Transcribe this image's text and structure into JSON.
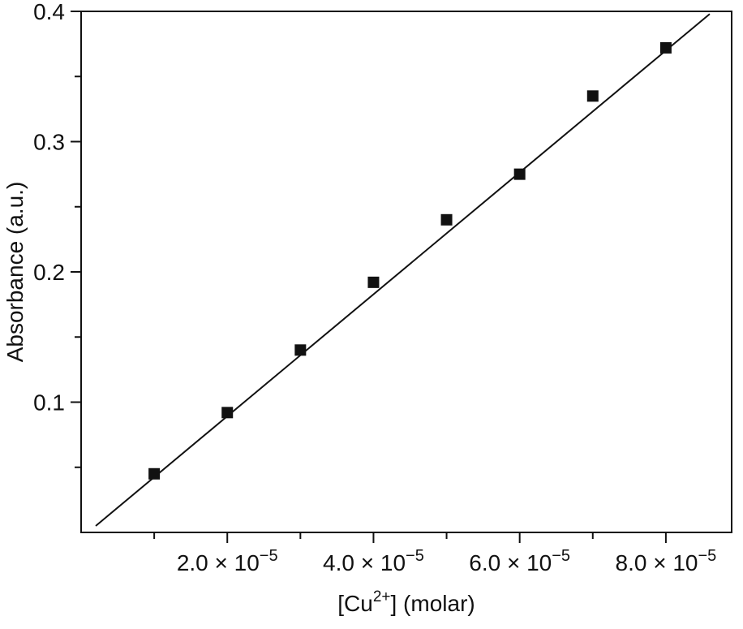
{
  "figure": {
    "background": "#ffffff",
    "text_color": "#111111"
  },
  "chart_data": {
    "type": "scatter",
    "title": "",
    "xlabel": "[Cu2+] (molar)",
    "ylabel": "Absorbance (a.u.)",
    "xlabel_parts": {
      "base1": "[Cu",
      "sup": "2+",
      "base2": "] (molar)"
    },
    "xlim": [
      0,
      8.9e-05
    ],
    "ylim": [
      0,
      0.4
    ],
    "grid": false,
    "legend": null,
    "axis_color": "#111111",
    "line_color": "#111111",
    "x_ticks": [
      {
        "value": 2e-05,
        "base": "2.0 × 10",
        "sup": "−5"
      },
      {
        "value": 4e-05,
        "base": "4.0 × 10",
        "sup": "−5"
      },
      {
        "value": 6e-05,
        "base": "6.0 × 10",
        "sup": "−5"
      },
      {
        "value": 8e-05,
        "base": "8.0 × 10",
        "sup": "−5"
      }
    ],
    "x_minor_ticks": [
      1e-05,
      3e-05,
      5e-05,
      7e-05
    ],
    "y_ticks": [
      {
        "value": 0.1,
        "label": "0.1"
      },
      {
        "value": 0.2,
        "label": "0.2"
      },
      {
        "value": 0.3,
        "label": "0.3"
      },
      {
        "value": 0.4,
        "label": "0.4"
      }
    ],
    "y_minor_ticks": [
      0.05,
      0.15,
      0.25,
      0.35
    ],
    "points": {
      "x": [
        1e-05,
        2e-05,
        3e-05,
        4e-05,
        5e-05,
        6e-05,
        7e-05,
        8e-05
      ],
      "y": [
        0.045,
        0.092,
        0.14,
        0.192,
        0.24,
        0.275,
        0.335,
        0.372
      ]
    },
    "fit_line": {
      "x1": 2e-06,
      "y1": 0.005,
      "x2": 8.6e-05,
      "y2": 0.398
    },
    "marker": {
      "shape": "square",
      "size": 14,
      "color": "#111111"
    }
  }
}
